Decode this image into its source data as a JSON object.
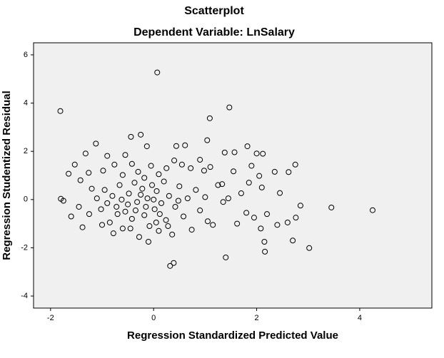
{
  "chart_data": {
    "type": "scatter",
    "title": "Scatterplot",
    "subtitle": "Dependent Variable: LnSalary",
    "x_label": "Regression Standardized Predicted Value",
    "y_label": "Regression Studentized Residual",
    "xlim": [
      -2.33,
      5.4
    ],
    "ylim": [
      -4.5,
      6.5
    ],
    "xticks": [
      -2,
      0,
      2,
      4
    ],
    "yticks": [
      -4,
      -2,
      0,
      2,
      4,
      6
    ],
    "color": "#000000",
    "background": "#f0f0f0",
    "x": [
      0.07,
      -1.81,
      1.47,
      1.09,
      3.45,
      4.25,
      3.02,
      0.32,
      0.39,
      1.4,
      2.16,
      -0.25,
      -0.44,
      -1.8,
      -1.12,
      -0.13,
      0.44,
      0.61,
      1.04,
      1.82,
      2.0,
      1.38,
      1.57,
      2.12,
      2.75,
      2.62,
      -1.32,
      -0.9,
      -1.53,
      -1.65,
      -1.42,
      -1.26,
      -0.98,
      -0.76,
      -0.6,
      -0.42,
      -0.3,
      -0.18,
      -0.05,
      0.1,
      0.25,
      0.4,
      0.55,
      0.72,
      0.98,
      1.1,
      1.55,
      1.9,
      2.05,
      2.35,
      1.33,
      1.7,
      1.85,
      2.1,
      2.45,
      -1.75,
      -1.6,
      -1.45,
      -1.38,
      -1.25,
      -1.1,
      -1.02,
      -0.95,
      -0.85,
      -0.8,
      -0.72,
      -0.66,
      -0.6,
      -0.55,
      -0.48,
      -0.42,
      -0.37,
      -0.32,
      -0.28,
      -0.22,
      -0.18,
      -0.12,
      -0.08,
      -0.03,
      0.02,
      0.06,
      0.1,
      0.15,
      0.2,
      0.24,
      0.3,
      0.36,
      0.42,
      0.5,
      0.58,
      0.66,
      0.74,
      0.82,
      0.9,
      1.0,
      1.05,
      1.15,
      1.25,
      1.35,
      1.45,
      1.62,
      1.8,
      1.95,
      2.08,
      2.15,
      2.2,
      2.4,
      2.6,
      2.7,
      2.85,
      2.76,
      -0.9,
      -0.7,
      -0.5,
      -0.35,
      -0.15,
      0.0,
      -0.25,
      -0.62,
      0.12,
      -1.0,
      -0.78,
      -0.45,
      -0.1,
      0.05,
      0.28,
      0.48,
      -1.2,
      -0.55,
      0.9
    ],
    "y": [
      5.27,
      3.67,
      3.82,
      3.37,
      -0.33,
      -0.44,
      -2.01,
      -2.75,
      -2.63,
      -2.4,
      -2.16,
      2.69,
      2.6,
      0.03,
      2.32,
      2.21,
      2.22,
      2.25,
      2.46,
      2.21,
      1.91,
      1.95,
      1.96,
      1.9,
      1.45,
      1.14,
      1.91,
      1.81,
      1.45,
      1.07,
      0.8,
      1.11,
      1.2,
      1.45,
      1.02,
      1.48,
      1.15,
      0.9,
      1.4,
      1.05,
      1.3,
      1.62,
      1.45,
      1.3,
      1.2,
      1.35,
      1.17,
      1.4,
      0.98,
      1.15,
      0.64,
      0.26,
      0.7,
      0.5,
      0.27,
      -0.05,
      -0.7,
      -0.3,
      -1.15,
      -0.6,
      0.05,
      -0.4,
      0.4,
      -0.95,
      0.15,
      -0.3,
      0.6,
      -1.2,
      -0.5,
      0.25,
      -0.8,
      0.7,
      -0.1,
      -1.55,
      0.45,
      -0.65,
      0.05,
      -1.1,
      0.6,
      -0.4,
      0.35,
      -1.3,
      -0.15,
      0.75,
      -0.85,
      0.15,
      -1.45,
      -0.3,
      0.55,
      -0.7,
      0.05,
      -1.25,
      0.4,
      -0.45,
      0.1,
      -0.9,
      -1.05,
      0.6,
      -0.1,
      0.05,
      -1.0,
      -0.55,
      -0.75,
      -1.2,
      -1.75,
      -0.6,
      -1.05,
      -0.95,
      -1.7,
      -0.25,
      -0.75,
      -0.15,
      -0.6,
      -0.2,
      -0.45,
      -0.3,
      0.0,
      0.2,
      0.0,
      -0.6,
      -1.05,
      -1.4,
      -1.2,
      -1.75,
      -0.95,
      -1.1,
      -0.05,
      0.45,
      1.85,
      1.65
    ]
  }
}
